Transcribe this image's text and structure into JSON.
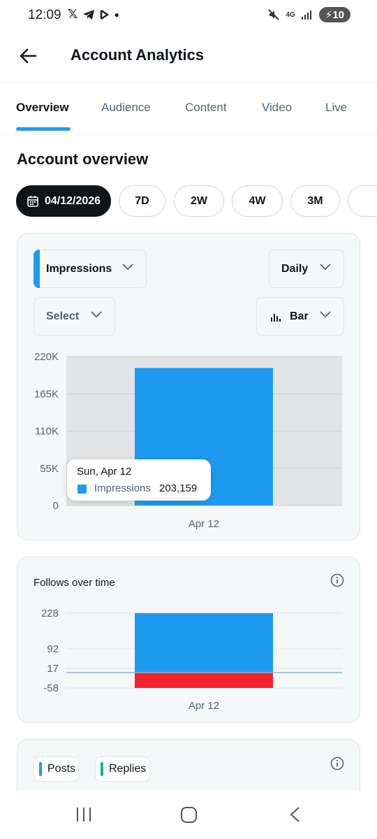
{
  "status_bar": {
    "time": "12:09",
    "notification_icons": [
      "x-icon",
      "telegram-icon",
      "app-icon",
      "dot-icon"
    ],
    "network": "4G",
    "battery": "10"
  },
  "header": {
    "title": "Account Analytics"
  },
  "tabs": [
    {
      "label": "Overview",
      "active": true
    },
    {
      "label": "Audience",
      "active": false
    },
    {
      "label": "Content",
      "active": false
    },
    {
      "label": "Video",
      "active": false
    },
    {
      "label": "Live",
      "active": false
    }
  ],
  "section_title": "Account overview",
  "date_pills": {
    "selected": "04/12/2026",
    "options": [
      "7D",
      "2W",
      "4W",
      "3M"
    ]
  },
  "impressions_card": {
    "metric_dropdown": "Impressions",
    "interval_dropdown": "Daily",
    "compare_dropdown": "Select",
    "chart_type_dropdown": "Bar",
    "accent_color": "#1d9bf0",
    "tooltip": {
      "date": "Sun, Apr 12",
      "series": "Impressions",
      "value": "203,159"
    }
  },
  "follows_card": {
    "title": "Follows over time"
  },
  "posts_card": {
    "legend": [
      {
        "label": "Posts",
        "color": "#1d9bf0"
      },
      {
        "label": "Replies",
        "color": "#00ba7c"
      }
    ]
  },
  "chart_data": [
    {
      "type": "bar",
      "categories": [
        "Apr 12"
      ],
      "series": [
        {
          "name": "Impressions",
          "values": [
            203159
          ],
          "color": "#1d9bf0"
        }
      ],
      "yticks": [
        "220K",
        "165K",
        "110K",
        "55K",
        "0"
      ],
      "ylim": [
        0,
        220000
      ],
      "grid": true
    },
    {
      "type": "bar",
      "categories": [
        "Apr 12"
      ],
      "series": [
        {
          "values": [
            228
          ],
          "color": "#1d9bf0"
        },
        {
          "values": [
            -58
          ],
          "color": "#f4212e"
        }
      ],
      "yticks": [
        "228",
        "92",
        "17",
        "-58"
      ],
      "net_line": 17,
      "grid": true
    }
  ],
  "nav_bar": {
    "icons": [
      "recent-apps-icon",
      "home-icon",
      "back-icon"
    ]
  }
}
